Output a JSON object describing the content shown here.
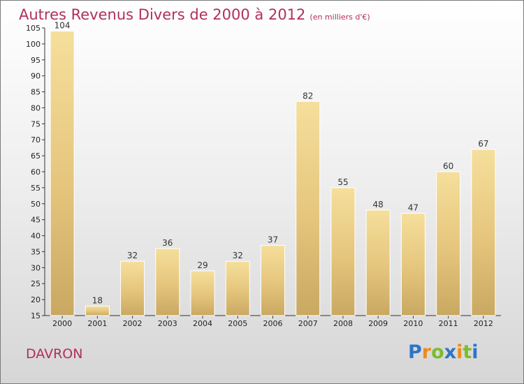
{
  "chart_data": {
    "type": "bar",
    "title": "Autres Revenus Divers de 2000 à 2012",
    "subtitle": "(en milliers d'€)",
    "categories": [
      "2000",
      "2001",
      "2002",
      "2003",
      "2004",
      "2005",
      "2006",
      "2007",
      "2008",
      "2009",
      "2010",
      "2011",
      "2012"
    ],
    "values": [
      104,
      18,
      32,
      36,
      29,
      32,
      37,
      82,
      55,
      48,
      47,
      60,
      67
    ],
    "ylim": [
      15,
      105
    ],
    "yticks": [
      15,
      20,
      25,
      30,
      35,
      40,
      45,
      50,
      55,
      60,
      65,
      70,
      75,
      80,
      85,
      90,
      95,
      100,
      105
    ],
    "grid": false,
    "bar_color": "#e8cd84"
  },
  "city": "DAVRON",
  "logo": "Proxiti",
  "colors": {
    "title": "#b0305a",
    "bar": "#e8cd84"
  }
}
